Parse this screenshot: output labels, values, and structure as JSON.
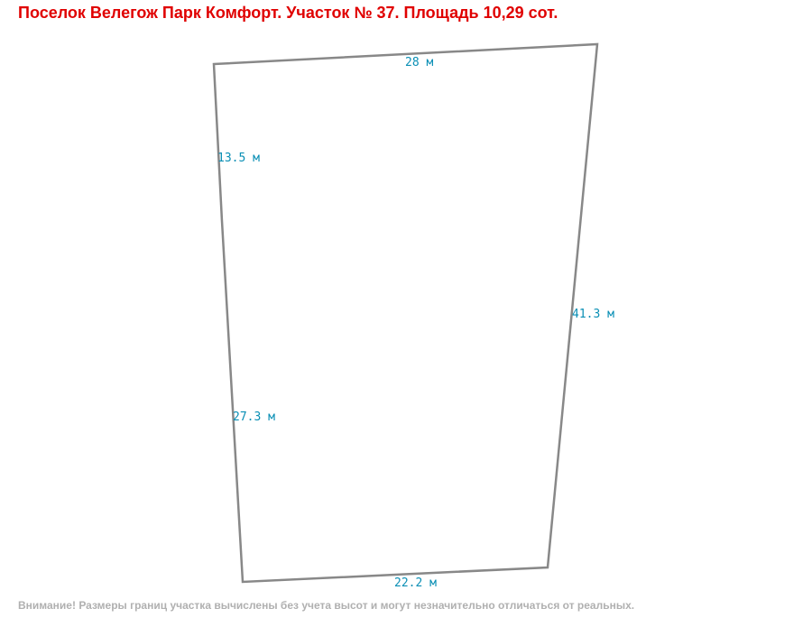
{
  "header": {
    "title": "Поселок Велегож Парк Комфорт. Участок № 37. Площадь 10,29 сот."
  },
  "plot": {
    "edges": [
      {
        "label": "28 м"
      },
      {
        "label": "41.3 м"
      },
      {
        "label": "22.2 м"
      },
      {
        "label": "27.3 м"
      },
      {
        "label": "13.5 м"
      }
    ]
  },
  "footer": {
    "note": "Внимание! Размеры границ участка вычислены без учета высот и могут незначительно отличаться от реальных."
  }
}
